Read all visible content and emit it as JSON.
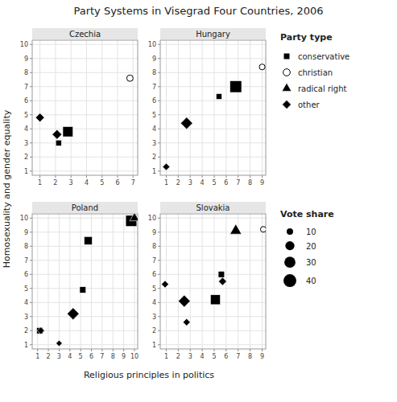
{
  "chart_data": {
    "type": "scatter",
    "title": "Party Systems in Visegrad Four Countries, 2006",
    "xlabel": "Religious principles in politics",
    "ylabel": "Homosexuality and gender equality",
    "grid": true,
    "legend_title": "Party type",
    "series": [
      {
        "name": "conservative",
        "marker": "square",
        "color": "black"
      },
      {
        "name": "christian",
        "marker": "circle-open",
        "color": "black"
      },
      {
        "name": "radical right",
        "marker": "triangle",
        "color": "black"
      },
      {
        "name": "other",
        "marker": "diamond",
        "color": "black"
      }
    ],
    "size_legend": {
      "title": "Vote share",
      "values": [
        10,
        20,
        30,
        40
      ]
    },
    "subplots": [
      {
        "title": "Czechia",
        "xlim": [
          0.5,
          7.3
        ],
        "xticks": [
          1,
          2,
          3,
          4,
          5,
          6,
          7
        ],
        "ylim": [
          0.7,
          10.3
        ],
        "yticks": [
          1,
          2,
          3,
          4,
          5,
          6,
          7,
          8,
          9,
          10
        ],
        "x": [
          1.0,
          2.1,
          2.2,
          2.8,
          6.8
        ],
        "y": [
          4.8,
          3.6,
          3.0,
          3.8,
          7.6
        ],
        "sizes": [
          12,
          14,
          10,
          32,
          10
        ],
        "types": [
          "other",
          "other",
          "conservative",
          "conservative",
          "christian"
        ]
      },
      {
        "title": "Hungary",
        "xlim": [
          0.5,
          9.3
        ],
        "xticks": [
          1,
          2,
          3,
          4,
          5,
          6,
          7,
          8,
          9
        ],
        "ylim": [
          0.7,
          10.3
        ],
        "yticks": [
          1,
          2,
          3,
          4,
          5,
          6,
          7,
          8,
          9,
          10
        ],
        "x": [
          1.0,
          2.7,
          5.4,
          6.8,
          9.0
        ],
        "y": [
          1.3,
          4.4,
          6.3,
          7.0,
          8.4
        ],
        "sizes": [
          8,
          22,
          10,
          42,
          8
        ],
        "types": [
          "other",
          "other",
          "conservative",
          "conservative",
          "christian"
        ]
      },
      {
        "title": "Poland",
        "xlim": [
          0.5,
          10.3
        ],
        "xticks": [
          1,
          2,
          3,
          4,
          5,
          6,
          7,
          8,
          9,
          10
        ],
        "ylim": [
          0.7,
          10.3
        ],
        "yticks": [
          1,
          2,
          3,
          4,
          5,
          6,
          7,
          8,
          9,
          10
        ],
        "x": [
          1.2,
          1.3,
          3.0,
          4.3,
          5.2,
          5.7,
          9.7,
          10.0
        ],
        "y": [
          2.0,
          2.0,
          1.1,
          3.2,
          4.9,
          8.4,
          9.8,
          10.0
        ],
        "sizes": [
          12,
          8,
          6,
          22,
          12,
          20,
          38,
          12
        ],
        "types": [
          "conservative",
          "other",
          "other",
          "other",
          "conservative",
          "conservative",
          "conservative",
          "radical right"
        ]
      },
      {
        "title": "Slovakia",
        "xlim": [
          0.5,
          9.3
        ],
        "xticks": [
          1,
          2,
          3,
          4,
          5,
          6,
          7,
          8,
          9
        ],
        "ylim": [
          0.7,
          10.3
        ],
        "yticks": [
          1,
          2,
          3,
          4,
          5,
          6,
          7,
          8,
          9,
          10
        ],
        "x": [
          0.9,
          2.5,
          2.7,
          5.1,
          5.6,
          5.7,
          6.8,
          9.1
        ],
        "y": [
          5.3,
          4.1,
          2.6,
          4.2,
          6.0,
          5.5,
          9.1,
          9.2
        ],
        "sizes": [
          8,
          22,
          8,
          30,
          12,
          10,
          18,
          8
        ],
        "types": [
          "other",
          "other",
          "other",
          "conservative",
          "conservative",
          "other",
          "radical right",
          "christian"
        ]
      }
    ]
  }
}
